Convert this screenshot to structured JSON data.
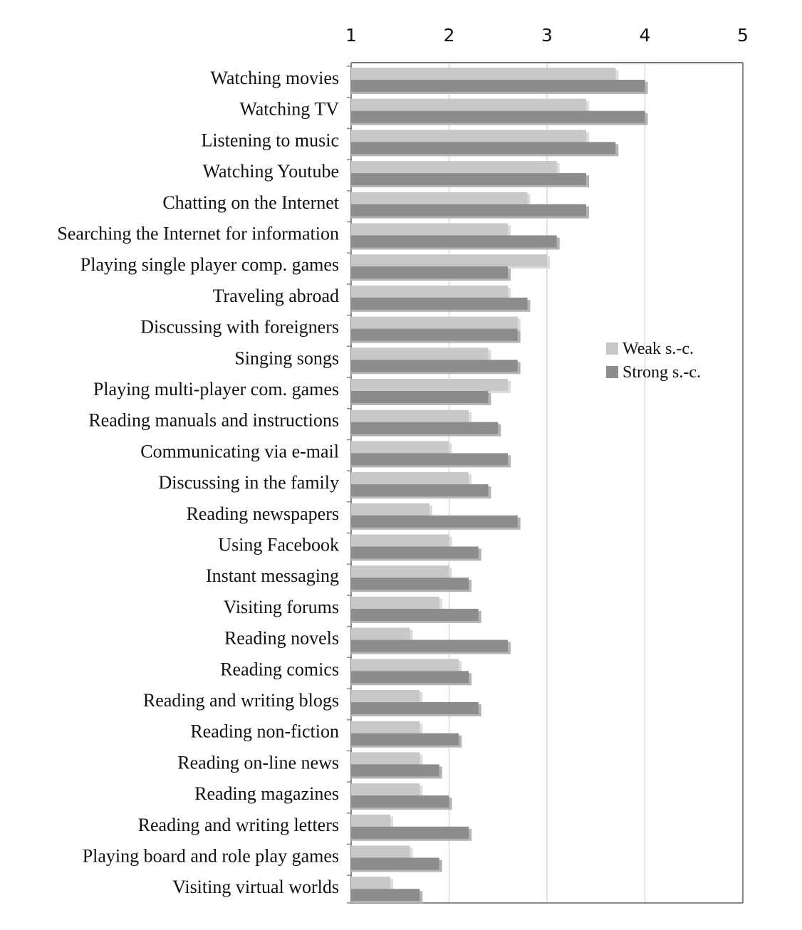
{
  "chart_data": {
    "type": "bar",
    "orientation": "horizontal",
    "categories": [
      "Watching movies",
      "Watching TV",
      "Listening to music",
      "Watching Youtube",
      "Chatting on the Internet",
      "Searching the Internet for information",
      "Playing single player comp. games",
      "Traveling abroad",
      "Discussing with foreigners",
      "Singing songs",
      "Playing multi-player com. games",
      "Reading manuals and instructions",
      "Communicating via e-mail",
      "Discussing in the family",
      "Reading newspapers",
      "Using Facebook",
      "Instant messaging",
      "Visiting forums",
      "Reading novels",
      "Reading comics",
      "Reading and writing blogs",
      "Reading non-fiction",
      "Reading on-line news",
      "Reading magazines",
      "Reading and writing letters",
      "Playing board and role play games",
      "Visiting virtual worlds"
    ],
    "series": [
      {
        "name": "Weak s.-c.",
        "color": "#c8c8c8",
        "values": [
          3.7,
          3.4,
          3.4,
          3.1,
          2.8,
          2.6,
          3.0,
          2.6,
          2.7,
          2.4,
          2.6,
          2.2,
          2.0,
          2.2,
          1.8,
          2.0,
          2.0,
          1.9,
          1.6,
          2.1,
          1.7,
          1.7,
          1.7,
          1.7,
          1.4,
          1.6,
          1.4
        ]
      },
      {
        "name": "Strong s.-c.",
        "color": "#8c8c8c",
        "values": [
          4.0,
          4.0,
          3.7,
          3.4,
          3.4,
          3.1,
          2.6,
          2.8,
          2.7,
          2.7,
          2.4,
          2.5,
          2.6,
          2.4,
          2.7,
          2.3,
          2.2,
          2.3,
          2.6,
          2.2,
          2.3,
          2.1,
          1.9,
          2.0,
          2.2,
          1.9,
          1.7
        ]
      }
    ],
    "xlim": [
      1,
      5
    ],
    "xticks": [
      "1",
      "2",
      "3",
      "4",
      "5"
    ],
    "x_axis_position": "top",
    "grid": true,
    "legend_position": "right",
    "title": "",
    "xlabel": "",
    "ylabel": ""
  }
}
